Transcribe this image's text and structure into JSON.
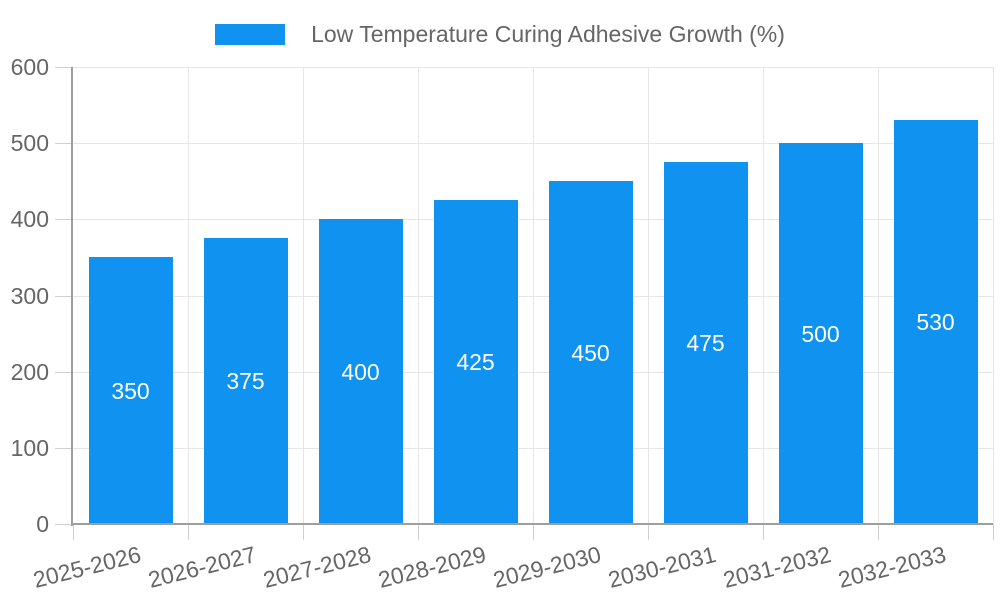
{
  "legend": {
    "label": "Low Temperature Curing Adhesive Growth (%)"
  },
  "chart_data": {
    "type": "bar",
    "title": "Low Temperature Curing Adhesive Growth (%)",
    "categories": [
      "2025-2026",
      "2026-2027",
      "2027-2028",
      "2028-2029",
      "2029-2030",
      "2030-2031",
      "2031-2032",
      "2032-2033"
    ],
    "values": [
      350,
      375,
      400,
      425,
      450,
      475,
      500,
      530
    ],
    "xlabel": "",
    "ylabel": "",
    "ylim": [
      0,
      600
    ],
    "ytick_step": 100,
    "yticks": [
      0,
      100,
      200,
      300,
      400,
      500,
      600
    ],
    "grid": true,
    "legend_position": "top-center",
    "bar_value_labels": "white, centered inside bars"
  },
  "style": {
    "bar_color": "#0f92f0",
    "grid_color": "#e6e6e6",
    "tick_color": "#cfcfcf",
    "axis_color": "#9e9e9e",
    "label_color": "#666666",
    "bar_label_color": "#ffffff",
    "background": "#ffffff"
  }
}
